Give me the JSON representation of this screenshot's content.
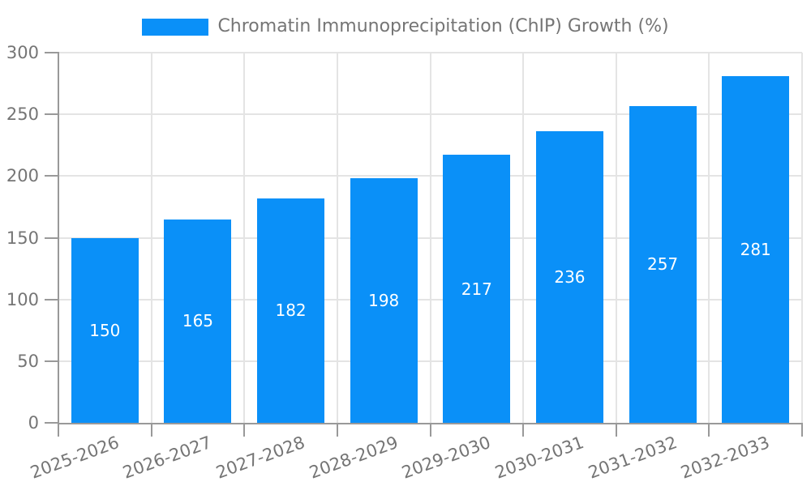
{
  "chart_data": {
    "type": "bar",
    "title": "",
    "legend": {
      "label": "Chromatin Immunoprecipitation (ChIP) Growth (%)",
      "position": "top-center"
    },
    "categories": [
      "2025-2026",
      "2026-2027",
      "2027-2028",
      "2028-2029",
      "2029-2030",
      "2030-2031",
      "2031-2032",
      "2032-2033"
    ],
    "series": [
      {
        "name": "Chromatin Immunoprecipitation (ChIP) Growth (%)",
        "values": [
          150,
          165,
          182,
          198,
          217,
          236,
          257,
          281
        ]
      }
    ],
    "bar_value_labels": [
      150,
      165,
      182,
      198,
      217,
      236,
      257,
      281
    ],
    "xlabel": "",
    "ylabel": "",
    "ylim": [
      0,
      300
    ],
    "ytick_step": 50,
    "ytick_labels": [
      "0",
      "50",
      "100",
      "150",
      "200",
      "250",
      "300"
    ],
    "grid": "on",
    "x_label_rotation_deg": -20,
    "value_label_position": "inside-center",
    "colors": {
      "bar": "#0a90f8",
      "axis": "#999999",
      "grid": "#e4e4e4",
      "text": "#757575",
      "bar_label": "#ffffff",
      "background": "#ffffff"
    }
  }
}
